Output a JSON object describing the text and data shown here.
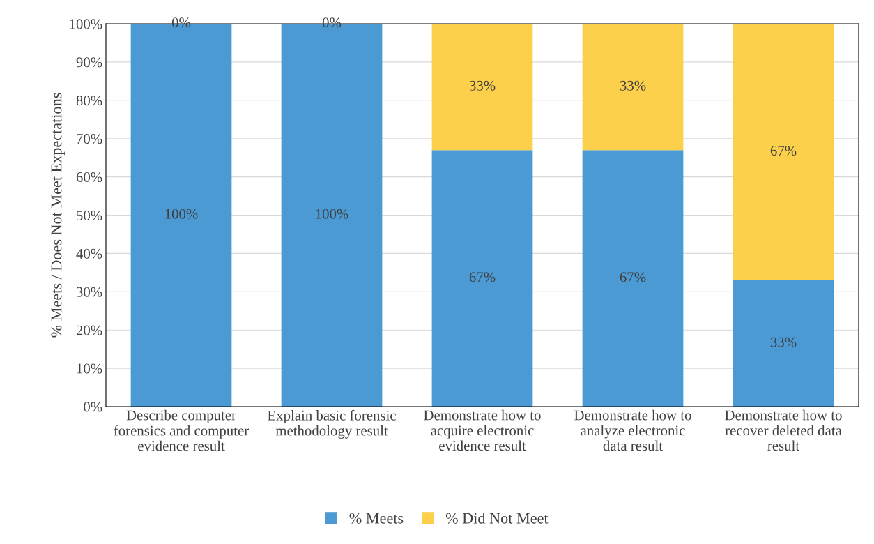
{
  "chart_data": {
    "type": "bar",
    "stacked": true,
    "ylabel": "% Meets / Does Not Meet Expectations",
    "categories": [
      "Describe computer forensics and computer evidence result",
      "Explain basic forensic methodology result",
      "Demonstrate how to acquire electronic evidence result",
      "Demonstrate how to analyze electronic data result",
      "Demonstrate how to recover deleted data result"
    ],
    "series": [
      {
        "name": "% Meets",
        "color": "#4b9ad4",
        "values": [
          100,
          100,
          67,
          67,
          33
        ],
        "value_labels": [
          "100%",
          "100%",
          "67%",
          "67%",
          "33%"
        ]
      },
      {
        "name": "% Did Not Meet",
        "color": "#fdd04b",
        "values": [
          0,
          0,
          33,
          33,
          67
        ],
        "value_labels": [
          "0%",
          "0%",
          "33%",
          "33%",
          "67%"
        ]
      }
    ],
    "ylim": [
      0,
      100
    ],
    "yticks": [
      {
        "value": 0,
        "label": "0%"
      },
      {
        "value": 10,
        "label": "10%"
      },
      {
        "value": 20,
        "label": "20%"
      },
      {
        "value": 30,
        "label": "30%"
      },
      {
        "value": 40,
        "label": "40%"
      },
      {
        "value": 50,
        "label": "50%"
      },
      {
        "value": 60,
        "label": "60%"
      },
      {
        "value": 70,
        "label": "70%"
      },
      {
        "value": 80,
        "label": "80%"
      },
      {
        "value": 90,
        "label": "90%"
      },
      {
        "value": 100,
        "label": "100%"
      }
    ],
    "grid": "y",
    "legend": "bottom"
  }
}
